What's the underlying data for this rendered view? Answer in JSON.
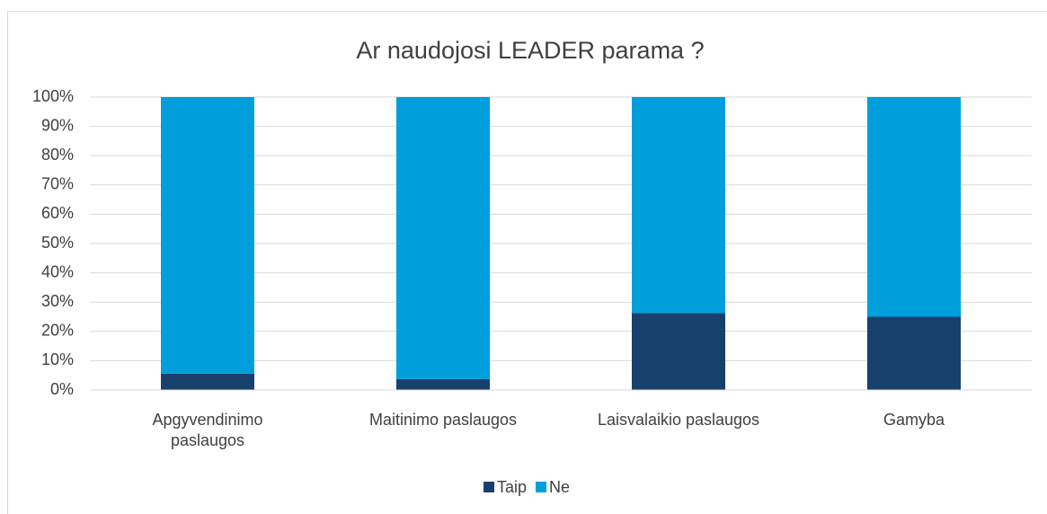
{
  "chart_data": {
    "type": "stacked_bar",
    "title": "Ar naudojosi LEADER parama ?",
    "categories": [
      "Apgyvendinimo paslaugos",
      "Maitinimo paslaugos",
      "Laisvalaikio paslaugos",
      "Gamyba"
    ],
    "series": [
      {
        "name": "Taip",
        "color": "#17406d",
        "values": [
          5.6,
          3.7,
          26.3,
          25
        ]
      },
      {
        "name": "Ne",
        "color": "#009fdb",
        "values": [
          94.4,
          96.3,
          73.7,
          75
        ]
      }
    ],
    "ylim": [
      0,
      100
    ],
    "yticks": [
      {
        "value": 0,
        "label": "0%"
      },
      {
        "value": 10,
        "label": "10%"
      },
      {
        "value": 20,
        "label": "20%"
      },
      {
        "value": 30,
        "label": "30%"
      },
      {
        "value": 40,
        "label": "40%"
      },
      {
        "value": 50,
        "label": "50%"
      },
      {
        "value": 60,
        "label": "60%"
      },
      {
        "value": 70,
        "label": "70%"
      },
      {
        "value": 80,
        "label": "80%"
      },
      {
        "value": 90,
        "label": "90%"
      },
      {
        "value": 100,
        "label": "100%"
      }
    ],
    "grid": true,
    "legend": "bottom"
  }
}
